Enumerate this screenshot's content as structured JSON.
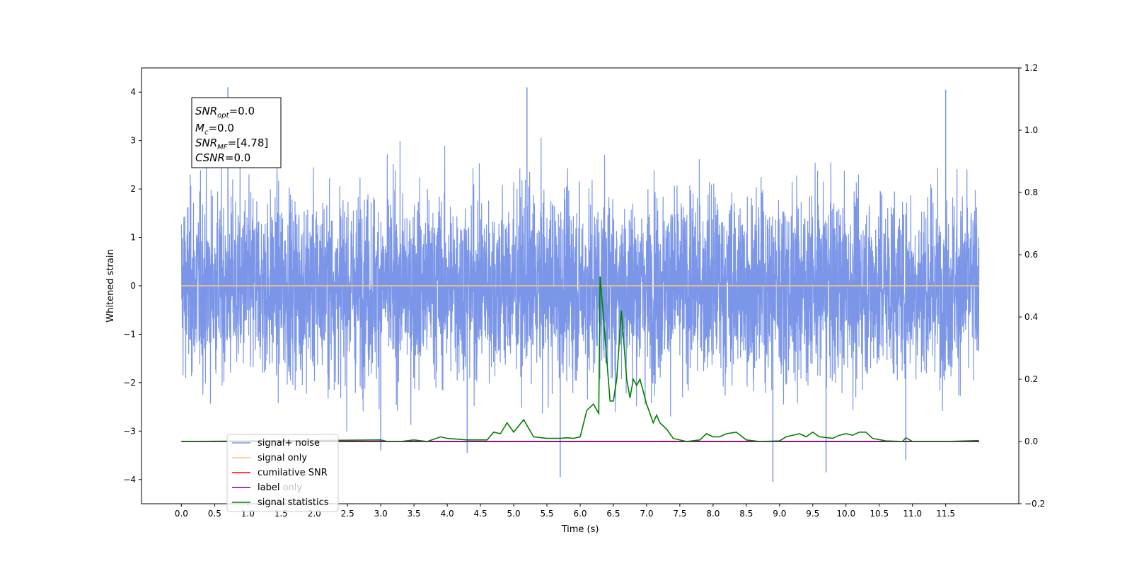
{
  "chart_data": {
    "type": "line",
    "xlabel": "Time (s)",
    "ylabel": "Whitened strain",
    "xlim": [
      -0.6,
      12.6
    ],
    "ylim": [
      -4.5,
      4.5
    ],
    "y2lim": [
      -0.2,
      1.2
    ],
    "x_ticks": [
      "0.0",
      "0.5",
      "1.0",
      "1.5",
      "2.0",
      "2.5",
      "3.0",
      "3.5",
      "4.0",
      "4.5",
      "5.0",
      "5.5",
      "6.0",
      "6.5",
      "7.0",
      "7.5",
      "8.0",
      "8.5",
      "9.0",
      "9.5",
      "10.0",
      "10.5",
      "11.0",
      "11.5"
    ],
    "y_ticks": [
      "4",
      "3",
      "2",
      "1",
      "0",
      "−1",
      "−2",
      "−3",
      "−4"
    ],
    "y2_ticks": [
      "1.2",
      "1.0",
      "0.8",
      "0.6",
      "0.4",
      "0.2",
      "0.0",
      "−0.2"
    ],
    "grid": false,
    "legend_position": "lower-left",
    "annotation": {
      "line1": "SNR",
      "line1_sub": "opt",
      "line1_val": "=0.0",
      "line2": "M",
      "line2_sub": "c",
      "line2_val": "=0.0",
      "line3": "SNR",
      "line3_sub": "MF",
      "line3_val": "=[4.78]",
      "line4": "CSNR",
      "line4_val": "=0.0"
    },
    "series": [
      {
        "name": "signal+ noise",
        "color": "#7b96e8",
        "x_range": [
          0.0,
          12.0
        ],
        "noise_std": 0.95,
        "spikes": [
          [
            0.7,
            4.1
          ],
          [
            5.2,
            4.1
          ],
          [
            11.5,
            4.05
          ],
          [
            5.7,
            -3.95
          ],
          [
            8.9,
            -4.05
          ],
          [
            9.7,
            -3.85
          ],
          [
            3.0,
            -3.4
          ],
          [
            4.3,
            -3.45
          ],
          [
            10.9,
            -3.6
          ]
        ]
      },
      {
        "name": "signal only",
        "color": "#f5c580",
        "x": [
          0.0,
          12.0
        ],
        "y": [
          0.0,
          0.0
        ]
      },
      {
        "name": "cumilative SNR",
        "color": "#ff0000",
        "x": [
          0.0,
          12.0
        ],
        "y": [
          0.0,
          0.0
        ]
      },
      {
        "name": "label",
        "color": "#800080",
        "x": [
          0.0,
          12.0
        ],
        "y": [
          0.0,
          0.0
        ]
      },
      {
        "name": "label only",
        "color": "#800080",
        "x": [
          0.0,
          12.0
        ],
        "y": [
          0.0,
          0.0
        ]
      },
      {
        "name": "signal statistics",
        "color": "#008000",
        "axis": "right",
        "x": [
          0.0,
          3.0,
          3.1,
          3.3,
          3.5,
          3.7,
          3.9,
          4.0,
          4.3,
          4.6,
          4.7,
          4.8,
          4.9,
          5.0,
          5.15,
          5.3,
          5.5,
          5.7,
          5.8,
          5.9,
          6.0,
          6.1,
          6.2,
          6.28,
          6.3,
          6.35,
          6.45,
          6.5,
          6.55,
          6.62,
          6.7,
          6.75,
          6.8,
          6.85,
          6.9,
          7.0,
          7.1,
          7.15,
          7.2,
          7.3,
          7.4,
          7.6,
          7.8,
          7.9,
          8.0,
          8.1,
          8.2,
          8.35,
          8.5,
          8.7,
          9.0,
          9.1,
          9.3,
          9.4,
          9.5,
          9.6,
          9.8,
          9.9,
          10.0,
          10.1,
          10.2,
          10.3,
          10.4,
          10.6,
          10.85,
          10.9,
          11.0,
          11.5,
          12.0
        ],
        "y": [
          0.0,
          0.005,
          0.0,
          0.0,
          0.005,
          0.0,
          0.015,
          0.01,
          0.005,
          0.005,
          0.03,
          0.025,
          0.06,
          0.03,
          0.07,
          0.015,
          0.01,
          0.01,
          0.012,
          0.01,
          0.015,
          0.1,
          0.12,
          0.09,
          0.53,
          0.4,
          0.13,
          0.13,
          0.2,
          0.42,
          0.2,
          0.14,
          0.2,
          0.18,
          0.2,
          0.12,
          0.06,
          0.085,
          0.06,
          0.04,
          0.01,
          0.0,
          0.005,
          0.025,
          0.015,
          0.015,
          0.025,
          0.03,
          0.005,
          0.0,
          0.002,
          0.015,
          0.025,
          0.015,
          0.03,
          0.015,
          0.01,
          0.02,
          0.025,
          0.02,
          0.03,
          0.03,
          0.01,
          0.002,
          0.0,
          0.012,
          0.0,
          0.0,
          0.003
        ]
      }
    ]
  }
}
